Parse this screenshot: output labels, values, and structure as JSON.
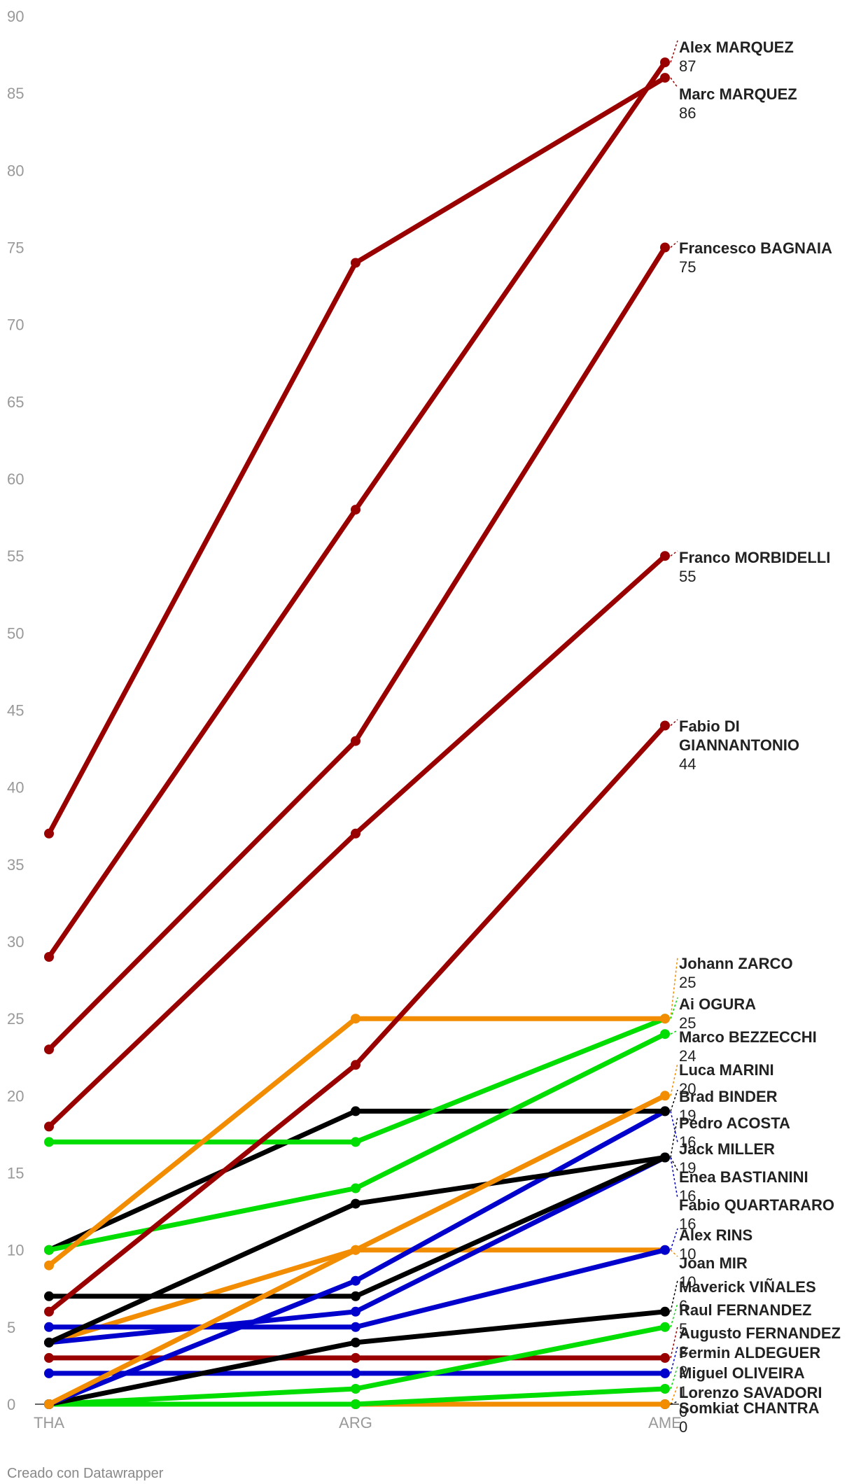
{
  "chart_data": {
    "type": "line",
    "x": [
      "THA",
      "ARG",
      "AME"
    ],
    "ylim": [
      0,
      90
    ],
    "yticks": [
      0,
      5,
      10,
      15,
      20,
      25,
      30,
      35,
      40,
      45,
      50,
      55,
      60,
      65,
      70,
      75,
      80,
      85,
      90
    ],
    "grid": false,
    "series": [
      {
        "name": "Alex MARQUEZ",
        "values": [
          29,
          58,
          87
        ],
        "color": "#990000"
      },
      {
        "name": "Marc MARQUEZ",
        "values": [
          37,
          74,
          86
        ],
        "color": "#990000"
      },
      {
        "name": "Francesco BAGNAIA",
        "values": [
          23,
          43,
          75
        ],
        "color": "#990000"
      },
      {
        "name": "Franco MORBIDELLI",
        "values": [
          18,
          37,
          55
        ],
        "color": "#990000"
      },
      {
        "name": "Fabio DI GIANNANTONIO",
        "values": [
          6,
          22,
          44
        ],
        "color": "#990000"
      },
      {
        "name": "Johann ZARCO",
        "values": [
          9,
          25,
          25
        ],
        "color": "#f28c00"
      },
      {
        "name": "Ai OGURA",
        "values": [
          17,
          17,
          25
        ],
        "color": "#00dd00"
      },
      {
        "name": "Marco BEZZECCHI",
        "values": [
          10,
          14,
          24
        ],
        "color": "#00dd00"
      },
      {
        "name": "Luca MARINI",
        "values": [
          0,
          10,
          20
        ],
        "color": "#f28c00"
      },
      {
        "name": "Brad BINDER",
        "values": [
          10,
          19,
          19
        ],
        "color": "#000000"
      },
      {
        "name": "Pedro ACOSTA",
        "values": [
          4,
          13,
          16
        ],
        "color": "#000000"
      },
      {
        "name": "Jack MILLER",
        "values": [
          0,
          8,
          19
        ],
        "color": "#0000cc"
      },
      {
        "name": "Enea BASTIANINI",
        "values": [
          7,
          7,
          16
        ],
        "color": "#000000"
      },
      {
        "name": "Fabio QUARTARARO",
        "values": [
          4,
          6,
          16
        ],
        "color": "#0000cc"
      },
      {
        "name": "Alex RINS",
        "values": [
          5,
          5,
          10
        ],
        "color": "#0000cc"
      },
      {
        "name": "Joan MIR",
        "values": [
          4,
          10,
          10
        ],
        "color": "#f28c00"
      },
      {
        "name": "Maverick VIÑALES",
        "values": [
          0,
          4,
          6
        ],
        "color": "#000000"
      },
      {
        "name": "Raul FERNANDEZ",
        "values": [
          0,
          1,
          5
        ],
        "color": "#00dd00"
      },
      {
        "name": "Augusto FERNANDEZ",
        "values": [
          3,
          3,
          3
        ],
        "color": "#990000"
      },
      {
        "name": "Fermin ALDEGUER",
        "values": [
          2,
          2,
          2
        ],
        "color": "#0000cc"
      },
      {
        "name": "Miguel OLIVEIRA",
        "values": [
          0,
          0,
          1
        ],
        "color": "#00dd00"
      },
      {
        "name": "Lorenzo SAVADORI",
        "values": [
          0,
          0,
          0
        ],
        "color": "#f28c00"
      },
      {
        "name": "Somkiat CHANTRA",
        "values": [
          0,
          0,
          0
        ],
        "color": "#000000"
      }
    ],
    "labels": [
      {
        "name": "Alex MARQUEZ",
        "value": "87",
        "color": "#990000"
      },
      {
        "name": "Marc MARQUEZ",
        "value": "86",
        "color": "#990000"
      },
      {
        "name": "Francesco BAGNAIA",
        "value": "75",
        "color": "#990000"
      },
      {
        "name": "Franco MORBIDELLI",
        "value": "55",
        "color": "#990000"
      },
      {
        "name": "Fabio DI",
        "name2": "GIANNANTONIO",
        "value": "44",
        "color": "#990000"
      },
      {
        "name": "Johann ZARCO",
        "value": "25",
        "color": "#f28c00"
      },
      {
        "name": "Ai OGURA",
        "value": "25",
        "color": "#00dd00"
      },
      {
        "name": "Marco BEZZECCHI",
        "value": "24",
        "color": "#00dd00"
      },
      {
        "name": "Luca MARINI",
        "value": "20",
        "color": "#f28c00"
      },
      {
        "name": "Brad BINDER",
        "value": "19",
        "color": "#000000"
      },
      {
        "name": "Pedro ACOSTA",
        "value": "16",
        "color": "#000000"
      },
      {
        "name": "Jack MILLER",
        "value": "19",
        "color": "#0000cc"
      },
      {
        "name": "Enea BASTIANINI",
        "value": "16",
        "color": "#000000"
      },
      {
        "name": "Fabio QUARTARARO",
        "value": "16",
        "color": "#0000cc"
      },
      {
        "name": "Alex RINS",
        "value": "10",
        "color": "#0000cc"
      },
      {
        "name": "Joan MIR",
        "value": "10",
        "color": "#f28c00"
      },
      {
        "name": "Maverick VIÑALES",
        "value": "6",
        "color": "#000000"
      },
      {
        "name": "Raul FERNANDEZ",
        "value": "5",
        "color": "#00dd00"
      },
      {
        "name": "Augusto FERNANDEZ",
        "value": "3",
        "color": "#990000"
      },
      {
        "name": "Fermin ALDEGUER",
        "value": "2",
        "color": "#0000cc"
      },
      {
        "name": "Miguel OLIVEIRA",
        "value": "1",
        "color": "#00dd00"
      },
      {
        "name": "Lorenzo SAVADORI",
        "value": "0",
        "color": "#f28c00"
      },
      {
        "name": "Somkiat CHANTRA",
        "value": "0",
        "color": "#000000"
      }
    ]
  },
  "footer": {
    "credit": "Creado con Datawrapper"
  }
}
